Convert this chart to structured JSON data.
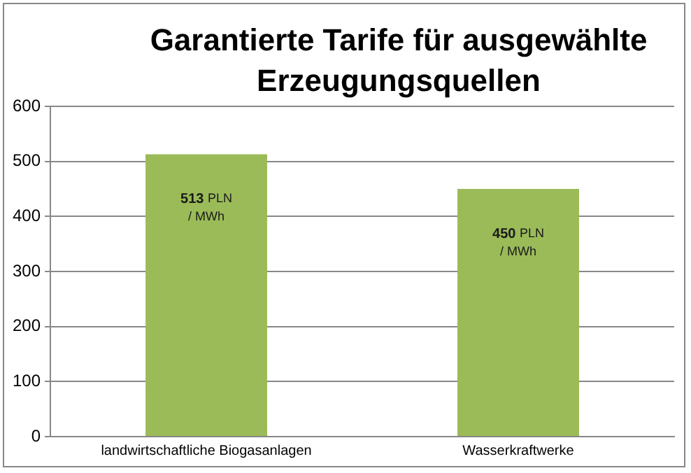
{
  "chart_data": {
    "type": "bar",
    "title": "Garantierte Tarife für ausgewählte Erzeugungsquellen",
    "categories": [
      "landwirtschaftliche Biogasanlagen",
      "Wasserkraftwerke"
    ],
    "values": [
      513,
      450
    ],
    "color": "#9bbb59",
    "value_labels": [
      "513 PLN / MWh",
      "450 PLN / MWh"
    ],
    "ylim": [
      0,
      600
    ],
    "yticks": [
      0,
      100,
      200,
      300,
      400,
      500,
      600
    ],
    "grid": "y",
    "legend": false
  }
}
